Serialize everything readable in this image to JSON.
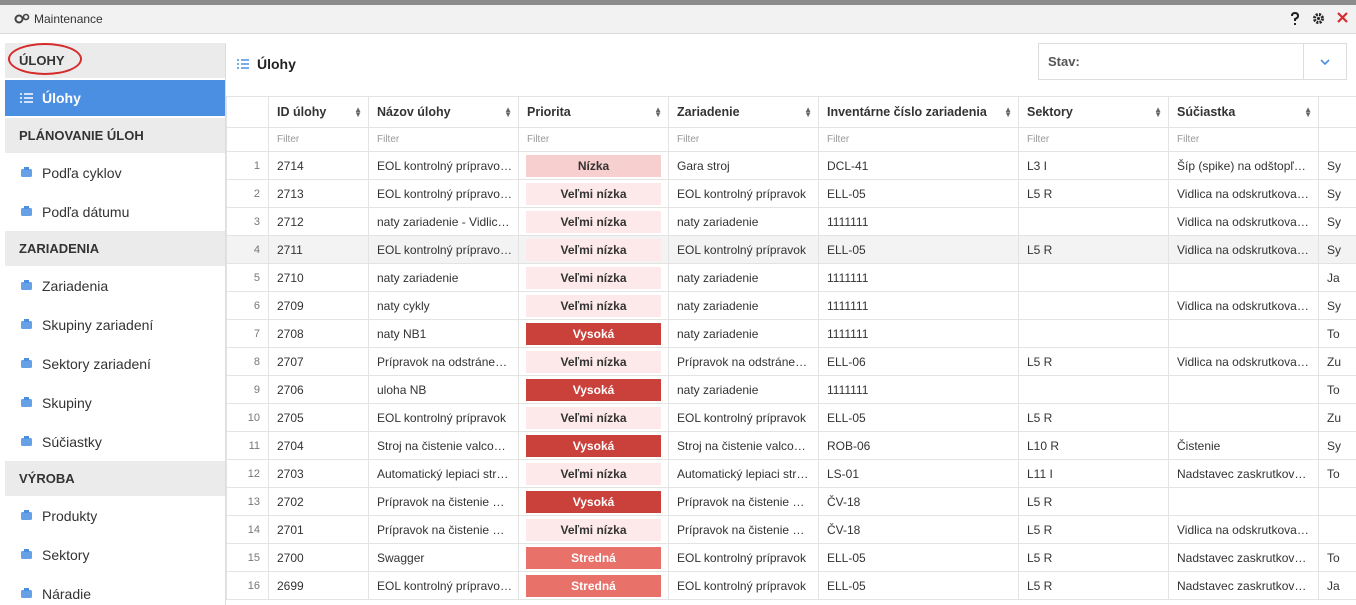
{
  "window": {
    "title": "Maintenance"
  },
  "sidebar": [
    {
      "heading": "ÚLOHY",
      "items": [
        "Úlohy"
      ]
    },
    {
      "heading": "PLÁNOVANIE ÚLOH",
      "items": [
        "Podľa cyklov",
        "Podľa dátumu"
      ]
    },
    {
      "heading": "ZARIADENIA",
      "items": [
        "Zariadenia",
        "Skupiny zariadení",
        "Sektory zariadení",
        "Skupiny",
        "Súčiastky"
      ]
    },
    {
      "heading": "VÝROBA",
      "items": [
        "Produkty",
        "Sektory",
        "Náradie"
      ]
    }
  ],
  "main": {
    "title": "Úlohy",
    "status_label": "Stav:"
  },
  "table": {
    "columns": [
      "ID úlohy",
      "Názov úlohy",
      "Priorita",
      "Zariadenie",
      "Inventárne číslo zariadenia",
      "Sektory",
      "Súčiastka"
    ],
    "filter_placeholder": "Filter",
    "rows": [
      {
        "number": "1",
        "priority_color": "#f8cfcf",
        "cells": [
          "2714",
          "EOL kontrolný prípravo…",
          "Nízka",
          "Gara stroj",
          "DCL-41",
          "L3 I",
          "Šíp (spike) na odštopľ…",
          "Sy"
        ]
      },
      {
        "number": "2",
        "priority_color": "#fde9e9",
        "cells": [
          "2713",
          "EOL kontrolný prípravo…",
          "Veľmi nízka",
          "EOL kontrolný prípravok",
          "ELL-05",
          "L5 R",
          "Vidlica na odskrutkova…",
          "Sy"
        ]
      },
      {
        "number": "3",
        "priority_color": "#fde9e9",
        "cells": [
          "2712",
          "naty zariadenie - Vidlic…",
          "Veľmi nízka",
          "naty zariadenie",
          "1111111",
          null,
          "Vidlica na odskrutkova…",
          "Sy"
        ]
      },
      {
        "number": "4",
        "priority_color": "#fde9e9",
        "cells": [
          "2711",
          "EOL kontrolný prípravo…",
          "Veľmi nízka",
          "EOL kontrolný prípravok",
          "ELL-05",
          "L5 R",
          "Vidlica na odskrutkova…",
          "Sy"
        ]
      },
      {
        "number": "5",
        "priority_color": "#fde9e9",
        "cells": [
          "2710",
          "naty zariadenie",
          "Veľmi nízka",
          "naty zariadenie",
          "1111111",
          null,
          null,
          "Ja"
        ]
      },
      {
        "number": "6",
        "priority_color": "#fde9e9",
        "cells": [
          "2709",
          "naty cykly",
          "Veľmi nízka",
          "naty zariadenie",
          "1111111",
          null,
          "Vidlica na odskrutkova…",
          "Sy"
        ]
      },
      {
        "number": "7",
        "priority_color": "#c9413a",
        "cells": [
          "2708",
          "naty NB1",
          "Vysoká",
          "naty zariadenie",
          "1111111",
          null,
          null,
          "To"
        ]
      },
      {
        "number": "8",
        "priority_color": "#fde9e9",
        "cells": [
          "2707",
          "Prípravok na odstráne…",
          "Veľmi nízka",
          "Prípravok na odstráne…",
          "ELL-06",
          "L5 R",
          "Vidlica na odskrutkova…",
          "Zu"
        ]
      },
      {
        "number": "9",
        "priority_color": "#c9413a",
        "cells": [
          "2706",
          "uloha NB",
          "Vysoká",
          "naty zariadenie",
          "1111111",
          null,
          null,
          "To"
        ]
      },
      {
        "number": "10",
        "priority_color": "#fde9e9",
        "cells": [
          "2705",
          "EOL kontrolný prípravok",
          "Veľmi nízka",
          "EOL kontrolný prípravok",
          "ELL-05",
          "L5 R",
          null,
          "Zu"
        ]
      },
      {
        "number": "11",
        "priority_color": "#c9413a",
        "cells": [
          "2704",
          "Stroj na čistenie valco…",
          "Vysoká",
          "Stroj na čistenie valco…",
          "ROB-06",
          "L10 R",
          "Čistenie",
          "Sy"
        ]
      },
      {
        "number": "12",
        "priority_color": "#fde9e9",
        "cells": [
          "2703",
          "Automatický lepiaci str…",
          "Veľmi nízka",
          "Automatický lepiaci str…",
          "LS-01",
          "L11 I",
          "Nadstavec zaskrutkov…",
          "To"
        ]
      },
      {
        "number": "13",
        "priority_color": "#c9413a",
        "cells": [
          "2702",
          "Prípravok na čistenie …",
          "Vysoká",
          "Prípravok na čistenie …",
          "ČV-18",
          "L5 R",
          null,
          null
        ]
      },
      {
        "number": "14",
        "priority_color": "#fde9e9",
        "cells": [
          "2701",
          "Prípravok na čistenie …",
          "Veľmi nízka",
          "Prípravok na čistenie …",
          "ČV-18",
          "L5 R",
          "Vidlica na odskrutkova…",
          null
        ]
      },
      {
        "number": "15",
        "priority_color": "#e8716a",
        "cells": [
          "2700",
          "Swagger",
          "Stredná",
          "EOL kontrolný prípravok",
          "ELL-05",
          "L5 R",
          "Nadstavec zaskrutkov…",
          "To"
        ]
      },
      {
        "number": "16",
        "priority_color": "#e8716a",
        "cells": [
          "2699",
          "EOL kontrolný prípravo…",
          "Stredná",
          "EOL kontrolný prípravok",
          "ELL-05",
          "L5 R",
          "Nadstavec zaskrutkov…",
          "Ja"
        ]
      }
    ]
  }
}
